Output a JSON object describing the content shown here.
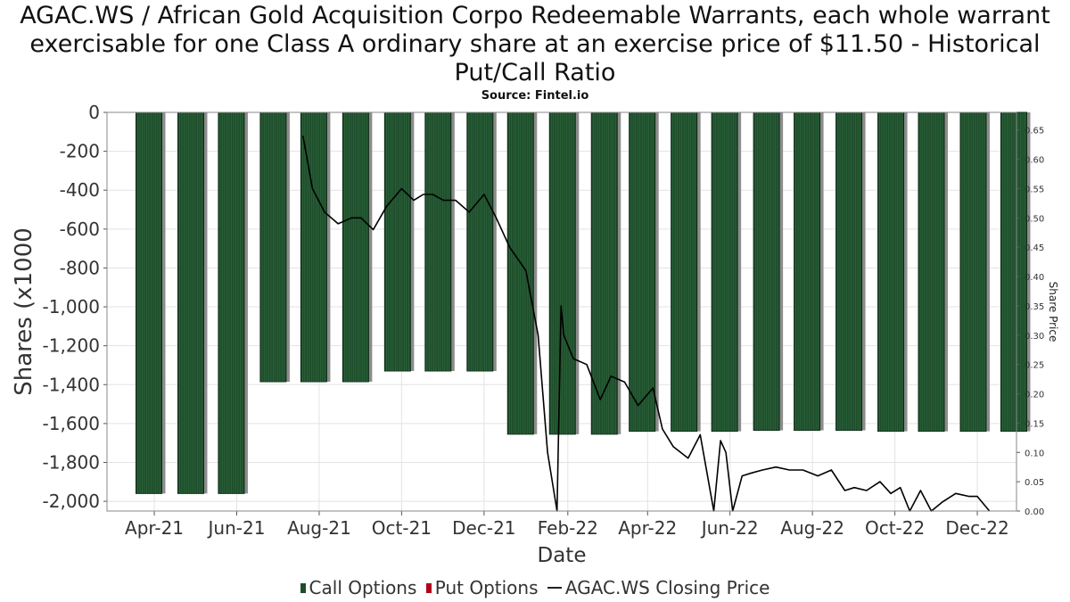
{
  "chart_data": {
    "type": "bar",
    "title": "AGAC.WS / African Gold Acquisition Corpo Redeemable Warrants, each whole warrant exercisable for one Class A ordinary share at an exercise price of $11.50 - Historical Put/Call Ratio",
    "subtitle": "Source: Fintel.io",
    "xlabel": "Date",
    "ylabel": "Shares (x1000",
    "y2label": "Share Price",
    "ylim": [
      -2050,
      0
    ],
    "y2lim": [
      0,
      0.68
    ],
    "xlim": [
      "2021-02-25",
      "2022-12-30"
    ],
    "yticks": [
      0,
      -200,
      -400,
      -600,
      -800,
      -1000,
      -1200,
      -1400,
      -1600,
      -1800,
      -2000
    ],
    "ytick_labels": [
      "0",
      "-200",
      "-400",
      "-600",
      "-800",
      "-1,000",
      "-1,200",
      "-1,400",
      "-1,600",
      "-1,800",
      "-2,000"
    ],
    "y2ticks": [
      0.65,
      0.6,
      0.55,
      0.5,
      0.45,
      0.4,
      0.35,
      0.3,
      0.25,
      0.2,
      0.15,
      0.1,
      0.05,
      0.0
    ],
    "y2tick_labels": [
      "0.65",
      "0.60",
      "0.55",
      "0.50",
      "0.45",
      "0.40",
      "0.35",
      "0.30",
      "0.25",
      "0.20",
      "0.15",
      "0.10",
      "0.05",
      "0.00"
    ],
    "xticks": [
      "2021-04-01",
      "2021-06-01",
      "2021-08-01",
      "2021-10-01",
      "2021-12-01",
      "2022-02-01",
      "2022-04-01",
      "2022-06-01",
      "2022-08-01",
      "2022-10-01",
      "2022-12-01"
    ],
    "xtick_labels": [
      "Apr-21",
      "Jun-21",
      "Aug-21",
      "Oct-21",
      "Dec-21",
      "Feb-22",
      "Apr-22",
      "Jun-22",
      "Aug-22",
      "Oct-22",
      "Dec-22"
    ],
    "grid": true,
    "legend_position": "bottom",
    "series": [
      {
        "name": "Call Options",
        "type": "bar",
        "color": "#1e4d2b",
        "x": [
          "2021-03-28",
          "2021-04-28",
          "2021-05-28",
          "2021-06-28",
          "2021-07-28",
          "2021-08-28",
          "2021-09-28",
          "2021-10-28",
          "2021-11-28",
          "2021-12-28",
          "2022-01-28",
          "2022-02-28",
          "2022-03-28",
          "2022-04-28",
          "2022-05-28",
          "2022-06-28",
          "2022-07-28",
          "2022-08-28",
          "2022-09-28",
          "2022-10-28",
          "2022-11-28",
          "2022-12-28"
        ],
        "values": [
          -1960,
          -1960,
          -1960,
          -1385,
          -1385,
          -1385,
          -1330,
          -1330,
          -1330,
          -1655,
          -1655,
          -1655,
          -1640,
          -1640,
          -1640,
          -1635,
          -1635,
          -1635,
          -1640,
          -1640,
          -1640,
          -1640
        ]
      },
      {
        "name": "Put Options",
        "type": "bar",
        "color": "#b3001b",
        "x": [],
        "values": []
      },
      {
        "name": "AGAC.WS Closing Price",
        "type": "line",
        "axis": "right",
        "color": "#000000",
        "x": [
          "2021-07-20",
          "2021-07-27",
          "2021-08-05",
          "2021-08-15",
          "2021-08-25",
          "2021-09-01",
          "2021-09-10",
          "2021-09-20",
          "2021-10-01",
          "2021-10-10",
          "2021-10-17",
          "2021-10-24",
          "2021-11-01",
          "2021-11-10",
          "2021-11-20",
          "2021-12-01",
          "2021-12-10",
          "2021-12-20",
          "2022-01-01",
          "2022-01-10",
          "2022-01-17",
          "2022-01-24",
          "2022-01-27",
          "2022-01-29",
          "2022-02-05",
          "2022-02-15",
          "2022-02-25",
          "2022-03-05",
          "2022-03-15",
          "2022-03-25",
          "2022-04-05",
          "2022-04-12",
          "2022-04-20",
          "2022-05-01",
          "2022-05-10",
          "2022-05-20",
          "2022-05-25",
          "2022-05-29",
          "2022-06-03",
          "2022-06-10",
          "2022-06-17",
          "2022-06-25",
          "2022-07-05",
          "2022-07-15",
          "2022-07-25",
          "2022-08-05",
          "2022-08-15",
          "2022-08-25",
          "2022-09-01",
          "2022-09-10",
          "2022-09-20",
          "2022-09-28",
          "2022-10-05",
          "2022-10-12",
          "2022-10-20",
          "2022-10-28",
          "2022-11-05",
          "2022-11-15",
          "2022-11-25",
          "2022-12-01",
          "2022-12-10"
        ],
        "values": [
          0.64,
          0.55,
          0.51,
          0.49,
          0.5,
          0.5,
          0.48,
          0.52,
          0.55,
          0.53,
          0.54,
          0.54,
          0.53,
          0.53,
          0.51,
          0.54,
          0.5,
          0.45,
          0.41,
          0.3,
          0.1,
          0.0,
          0.35,
          0.3,
          0.26,
          0.25,
          0.19,
          0.23,
          0.22,
          0.18,
          0.21,
          0.14,
          0.11,
          0.09,
          0.13,
          0.0,
          0.12,
          0.1,
          0.0,
          0.06,
          0.065,
          0.07,
          0.075,
          0.07,
          0.07,
          0.06,
          0.07,
          0.035,
          0.04,
          0.035,
          0.05,
          0.03,
          0.04,
          0.0,
          0.035,
          0.0,
          0.015,
          0.03,
          0.025,
          0.025,
          0.0
        ]
      }
    ]
  },
  "legend": {
    "call_label": "Call Options",
    "put_label": "Put Options",
    "price_label": "AGAC.WS Closing Price",
    "call_color": "#1e4d2b",
    "put_color": "#b3001b"
  }
}
